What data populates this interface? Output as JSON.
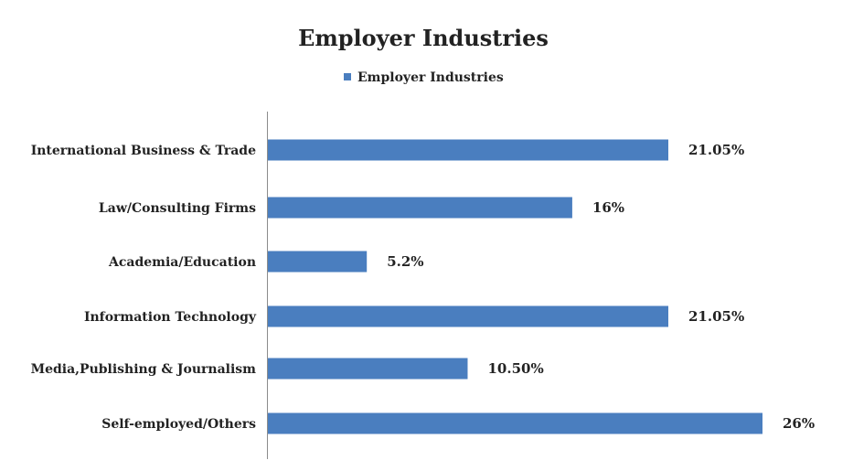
{
  "chart_data": {
    "type": "bar",
    "orientation": "horizontal",
    "title": "Employer Industries",
    "legend": {
      "position": "top",
      "entries": [
        "Employer Industries"
      ]
    },
    "categories": [
      "International Business & Trade",
      "Law/Consulting Firms",
      "Academia/Education",
      "Information Technology",
      "Media,Publishing & Journalism",
      "Self-employed/Others"
    ],
    "series": [
      {
        "name": "Employer Industries",
        "color": "#4a7ebf",
        "values": [
          21.05,
          16,
          5.2,
          21.05,
          10.5,
          26
        ],
        "data_labels": [
          "21.05%",
          "16%",
          "5.2%",
          "21.05%",
          "10.50%",
          "26%"
        ]
      }
    ],
    "xlim": [
      0,
      26
    ],
    "grid": false
  }
}
